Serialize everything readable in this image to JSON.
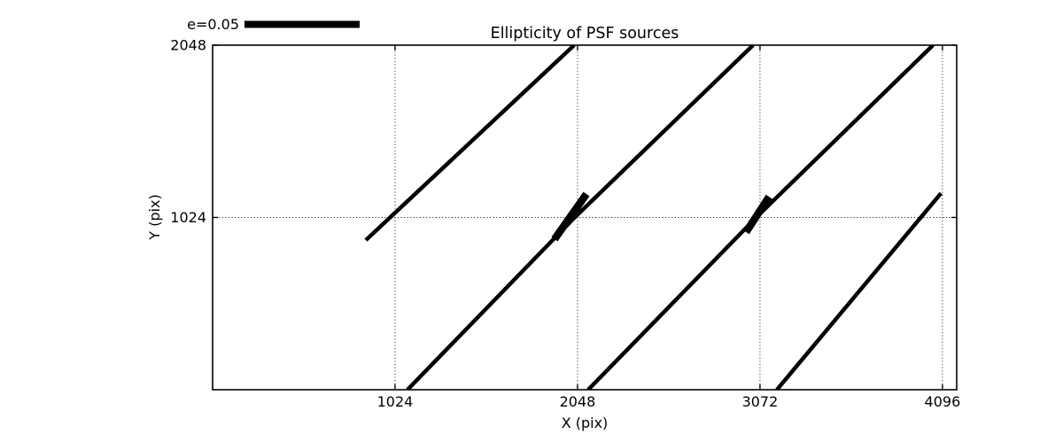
{
  "chart_data": {
    "type": "line",
    "variant": "psf-ellipticity-whisker-map",
    "title": "Ellipticity of PSF sources",
    "xlabel": "X (pix)",
    "ylabel": "Y (pix)",
    "xlim": [
      0,
      4176
    ],
    "ylim": [
      0,
      2048
    ],
    "xticks": [
      1024,
      2048,
      3072,
      4096
    ],
    "yticks": [
      1024,
      2048
    ],
    "grid": {
      "style": "dotted",
      "x_lines": [
        1024,
        2048,
        3072,
        4096
      ],
      "y_lines": [
        1024
      ]
    },
    "legend": {
      "label": "e=0.05",
      "position": "top-left-outside-axes"
    },
    "colors": {
      "line": "#000000",
      "background": "#ffffff",
      "text": "#000000"
    },
    "whiskers": [
      {
        "name": "whisker-line-1",
        "stroke_px": 4.5,
        "points": [
          [
            860,
            889
          ],
          [
            2029,
            2048
          ]
        ]
      },
      {
        "name": "whisker-line-2",
        "stroke_px": 4.5,
        "points": [
          [
            1094,
            0
          ],
          [
            2029,
            1021
          ],
          [
            3033,
            2048
          ]
        ]
      },
      {
        "name": "whisker-line-3",
        "stroke_px": 4.5,
        "points": [
          [
            2108,
            0
          ],
          [
            3063,
            1037
          ],
          [
            4043,
            2048
          ]
        ]
      },
      {
        "name": "whisker-line-4",
        "stroke_px": 4.5,
        "points": [
          [
            3167,
            0
          ],
          [
            4088,
            1168
          ]
        ]
      },
      {
        "name": "whisker-thick-1",
        "stroke_px": 8.5,
        "points": [
          [
            1919,
            895
          ],
          [
            2098,
            1163
          ]
        ]
      },
      {
        "name": "whisker-thick-2",
        "stroke_px": 8.5,
        "points": [
          [
            2994,
            937
          ],
          [
            3123,
            1147
          ]
        ]
      }
    ]
  }
}
